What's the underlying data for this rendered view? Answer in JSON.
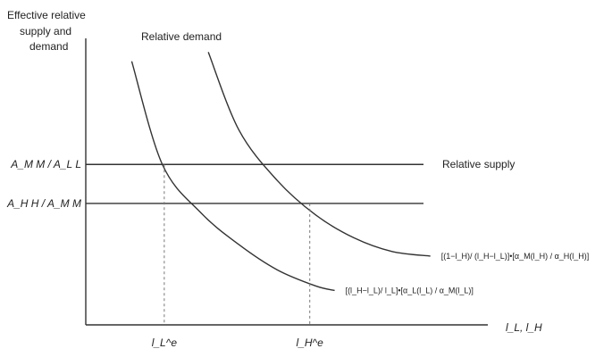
{
  "chart_data": {
    "type": "line",
    "title": "",
    "ylabel_lines": [
      "Effective relative",
      "supply and",
      "demand"
    ],
    "xlabel": "l_L, l_H",
    "annotation": "Relative demand",
    "supply_label": "Relative supply",
    "y_levels": [
      {
        "label": "A_M M / A_L L",
        "value": 0.7
      },
      {
        "label": "A_H H / A_M M",
        "value": 0.53
      }
    ],
    "series": [
      {
        "name": "[(l_H−l_L)/ l_L]•[α_L(l_L) / α_M(l_L)]",
        "x": [
          0.12,
          0.2,
          0.3,
          0.4,
          0.5,
          0.6,
          0.65
        ],
        "y": [
          1.15,
          0.7,
          0.49,
          0.35,
          0.24,
          0.17,
          0.15
        ]
      },
      {
        "name": "[(1−l_H)/ (l_H−l_L)]•[α_M(l_H) / α_H(l_H)]",
        "x": [
          0.32,
          0.4,
          0.5,
          0.6,
          0.7,
          0.8,
          0.9
        ],
        "y": [
          1.19,
          0.85,
          0.63,
          0.48,
          0.38,
          0.32,
          0.3
        ]
      }
    ],
    "x_markers": [
      {
        "label": "l_L^e",
        "x": 0.205
      },
      {
        "label": "l_H^e",
        "x": 0.585
      }
    ],
    "xlim": [
      0,
      1.05
    ],
    "ylim": [
      0,
      1.25
    ]
  }
}
